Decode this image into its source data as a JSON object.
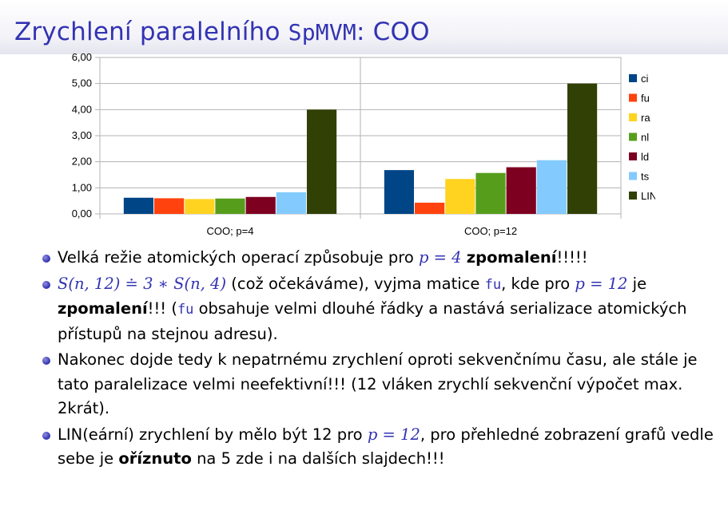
{
  "slide": {
    "title_prefix": "Zrychlení paralelního ",
    "title_code": "SpMVM",
    "title_suffix": ": COO"
  },
  "colors": {
    "title": "#3333b3",
    "ci": "#004586",
    "fu": "#ff420e",
    "ra": "#ffd320",
    "nl": "#579d1c",
    "ld": "#7e0021",
    "ts": "#83caff",
    "LIN": "#314004"
  },
  "chart_data": {
    "type": "bar",
    "categories": [
      "COO; p=4",
      "COO; p=12"
    ],
    "series": [
      {
        "name": "ci",
        "values": [
          0.62,
          1.68
        ]
      },
      {
        "name": "fu",
        "values": [
          0.6,
          0.43
        ]
      },
      {
        "name": "ra",
        "values": [
          0.57,
          1.34
        ]
      },
      {
        "name": "nl",
        "values": [
          0.59,
          1.57
        ]
      },
      {
        "name": "ld",
        "values": [
          0.65,
          1.79
        ]
      },
      {
        "name": "ts",
        "values": [
          0.83,
          2.06
        ]
      },
      {
        "name": "LIN",
        "values": [
          4.0,
          5.0
        ]
      }
    ],
    "ylim": [
      0,
      6
    ],
    "yticks": [
      "0,00",
      "1,00",
      "2,00",
      "3,00",
      "4,00",
      "5,00",
      "6,00"
    ],
    "grid": true,
    "legend": "right"
  },
  "bullets": {
    "b1": {
      "t1": "Velká režie atomických operací způsobuje pro ",
      "m1": "p = 4",
      "t2": " ",
      "bold": "zpomalení",
      "t3": "!!!!!"
    },
    "b2": {
      "m1": "S(n, 12) ≐ 3 ∗ S(n, 4)",
      "t1": " (což očekáváme), vyjma matice ",
      "c1": "fu",
      "t2": ", kde pro ",
      "m2": "p = 12",
      "t3": " je ",
      "bold": "zpomalení",
      "t4": "!!! (",
      "c2": "fu",
      "t5": " obsahuje velmi dlouhé řádky a nastává serializace atomických přístupů na stejnou adresu)."
    },
    "b3": {
      "t1": "Nakonec dojde tedy k nepatrnému zrychlení oproti sekvenčnímu času, ale stále je tato paralelizace velmi neefektivní!!! (12 vláken zrychlí sekvenční výpočet max. 2krát)."
    },
    "b4": {
      "t1": "LIN(eární) zrychlení by mělo být 12 pro ",
      "m1": "p = 12",
      "t2": ", pro přehledné zobrazení grafů vedle sebe je ",
      "bold": "oříznuto",
      "t3": " na 5 zde i na dalších slajdech!!!"
    }
  }
}
